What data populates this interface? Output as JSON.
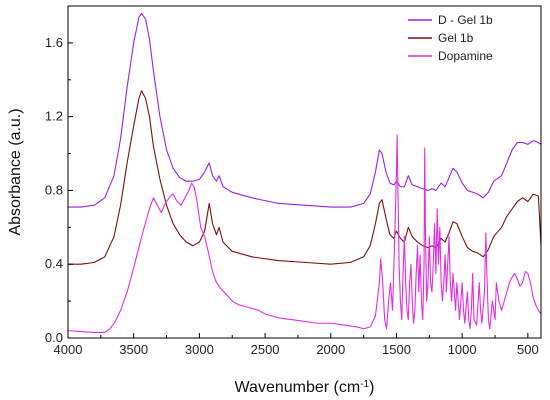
{
  "chart_data": {
    "type": "line",
    "title": "",
    "xlabel_main": "Wavenumber (cm",
    "xlabel_sup": "-1",
    "xlabel_end": ")",
    "ylabel": "Absorbance (a.u.)",
    "xlim": [
      4000,
      400
    ],
    "ylim": [
      0,
      1.8
    ],
    "x_reversed": true,
    "grid": false,
    "legend_position": "top-right",
    "x_ticks": [
      4000,
      3500,
      3000,
      2500,
      2000,
      1500,
      1000,
      500
    ],
    "x_tick_labels": [
      "4000",
      "3500",
      "3000",
      "2500",
      "2000",
      "1500",
      "1000",
      "500"
    ],
    "y_ticks": [
      0.0,
      0.4,
      0.8,
      1.2,
      1.6
    ],
    "y_tick_labels": [
      "0.0",
      "0.4",
      "0.8",
      "1.2",
      "1.6"
    ],
    "series": [
      {
        "name": "D - Gel 1b",
        "color": "#9b1fe8",
        "points": [
          [
            4000,
            0.71
          ],
          [
            3900,
            0.71
          ],
          [
            3800,
            0.72
          ],
          [
            3720,
            0.76
          ],
          [
            3650,
            0.88
          ],
          [
            3600,
            1.08
          ],
          [
            3550,
            1.36
          ],
          [
            3500,
            1.6
          ],
          [
            3460,
            1.74
          ],
          [
            3440,
            1.76
          ],
          [
            3410,
            1.73
          ],
          [
            3380,
            1.62
          ],
          [
            3350,
            1.45
          ],
          [
            3300,
            1.2
          ],
          [
            3250,
            1.02
          ],
          [
            3200,
            0.92
          ],
          [
            3150,
            0.87
          ],
          [
            3100,
            0.85
          ],
          [
            3050,
            0.85
          ],
          [
            3000,
            0.86
          ],
          [
            2960,
            0.9
          ],
          [
            2925,
            0.95
          ],
          [
            2900,
            0.88
          ],
          [
            2870,
            0.85
          ],
          [
            2850,
            0.88
          ],
          [
            2820,
            0.82
          ],
          [
            2750,
            0.79
          ],
          [
            2600,
            0.76
          ],
          [
            2400,
            0.73
          ],
          [
            2200,
            0.72
          ],
          [
            2000,
            0.71
          ],
          [
            1850,
            0.71
          ],
          [
            1750,
            0.73
          ],
          [
            1700,
            0.78
          ],
          [
            1660,
            0.9
          ],
          [
            1630,
            1.02
          ],
          [
            1610,
            1.0
          ],
          [
            1580,
            0.9
          ],
          [
            1550,
            0.84
          ],
          [
            1520,
            0.83
          ],
          [
            1500,
            0.85
          ],
          [
            1470,
            0.82
          ],
          [
            1440,
            0.82
          ],
          [
            1410,
            0.88
          ],
          [
            1380,
            0.83
          ],
          [
            1340,
            0.82
          ],
          [
            1300,
            0.81
          ],
          [
            1260,
            0.8
          ],
          [
            1230,
            0.81
          ],
          [
            1200,
            0.8
          ],
          [
            1160,
            0.84
          ],
          [
            1130,
            0.82
          ],
          [
            1100,
            0.87
          ],
          [
            1070,
            0.92
          ],
          [
            1040,
            0.9
          ],
          [
            1000,
            0.84
          ],
          [
            960,
            0.8
          ],
          [
            920,
            0.79
          ],
          [
            880,
            0.78
          ],
          [
            840,
            0.76
          ],
          [
            800,
            0.79
          ],
          [
            760,
            0.85
          ],
          [
            700,
            0.88
          ],
          [
            660,
            0.95
          ],
          [
            620,
            1.02
          ],
          [
            580,
            1.06
          ],
          [
            540,
            1.06
          ],
          [
            500,
            1.05
          ],
          [
            460,
            1.07
          ],
          [
            420,
            1.06
          ],
          [
            400,
            1.05
          ]
        ]
      },
      {
        "name": "Gel 1b",
        "color": "#7a1010",
        "points": [
          [
            4000,
            0.4
          ],
          [
            3900,
            0.4
          ],
          [
            3800,
            0.41
          ],
          [
            3720,
            0.44
          ],
          [
            3650,
            0.55
          ],
          [
            3600,
            0.72
          ],
          [
            3550,
            0.95
          ],
          [
            3500,
            1.15
          ],
          [
            3460,
            1.3
          ],
          [
            3440,
            1.34
          ],
          [
            3410,
            1.3
          ],
          [
            3380,
            1.2
          ],
          [
            3350,
            1.04
          ],
          [
            3300,
            0.86
          ],
          [
            3250,
            0.72
          ],
          [
            3200,
            0.62
          ],
          [
            3150,
            0.56
          ],
          [
            3100,
            0.52
          ],
          [
            3050,
            0.5
          ],
          [
            3000,
            0.52
          ],
          [
            2960,
            0.58
          ],
          [
            2925,
            0.73
          ],
          [
            2900,
            0.62
          ],
          [
            2870,
            0.56
          ],
          [
            2850,
            0.6
          ],
          [
            2820,
            0.52
          ],
          [
            2750,
            0.47
          ],
          [
            2600,
            0.44
          ],
          [
            2400,
            0.42
          ],
          [
            2200,
            0.41
          ],
          [
            2000,
            0.4
          ],
          [
            1850,
            0.41
          ],
          [
            1750,
            0.44
          ],
          [
            1700,
            0.5
          ],
          [
            1660,
            0.62
          ],
          [
            1630,
            0.73
          ],
          [
            1610,
            0.75
          ],
          [
            1580,
            0.65
          ],
          [
            1550,
            0.56
          ],
          [
            1520,
            0.54
          ],
          [
            1500,
            0.58
          ],
          [
            1470,
            0.54
          ],
          [
            1440,
            0.52
          ],
          [
            1410,
            0.6
          ],
          [
            1380,
            0.55
          ],
          [
            1340,
            0.52
          ],
          [
            1300,
            0.5
          ],
          [
            1260,
            0.49
          ],
          [
            1230,
            0.5
          ],
          [
            1200,
            0.49
          ],
          [
            1160,
            0.54
          ],
          [
            1130,
            0.52
          ],
          [
            1100,
            0.57
          ],
          [
            1070,
            0.63
          ],
          [
            1040,
            0.62
          ],
          [
            1000,
            0.55
          ],
          [
            960,
            0.49
          ],
          [
            920,
            0.47
          ],
          [
            880,
            0.46
          ],
          [
            840,
            0.44
          ],
          [
            800,
            0.48
          ],
          [
            760,
            0.55
          ],
          [
            700,
            0.6
          ],
          [
            660,
            0.66
          ],
          [
            620,
            0.7
          ],
          [
            580,
            0.74
          ],
          [
            540,
            0.76
          ],
          [
            500,
            0.74
          ],
          [
            460,
            0.78
          ],
          [
            420,
            0.77
          ],
          [
            400,
            0.5
          ]
        ]
      },
      {
        "name": "Dopamine",
        "color": "#e12fe0",
        "points": [
          [
            4000,
            0.04
          ],
          [
            3900,
            0.035
          ],
          [
            3800,
            0.03
          ],
          [
            3720,
            0.03
          ],
          [
            3680,
            0.05
          ],
          [
            3640,
            0.09
          ],
          [
            3600,
            0.15
          ],
          [
            3550,
            0.25
          ],
          [
            3500,
            0.38
          ],
          [
            3450,
            0.52
          ],
          [
            3420,
            0.6
          ],
          [
            3380,
            0.7
          ],
          [
            3350,
            0.76
          ],
          [
            3320,
            0.72
          ],
          [
            3290,
            0.68
          ],
          [
            3260,
            0.73
          ],
          [
            3220,
            0.77
          ],
          [
            3200,
            0.78
          ],
          [
            3170,
            0.74
          ],
          [
            3140,
            0.72
          ],
          [
            3110,
            0.76
          ],
          [
            3080,
            0.8
          ],
          [
            3060,
            0.84
          ],
          [
            3040,
            0.82
          ],
          [
            3020,
            0.75
          ],
          [
            2990,
            0.6
          ],
          [
            2960,
            0.55
          ],
          [
            2930,
            0.46
          ],
          [
            2900,
            0.36
          ],
          [
            2870,
            0.3
          ],
          [
            2840,
            0.27
          ],
          [
            2800,
            0.24
          ],
          [
            2750,
            0.2
          ],
          [
            2700,
            0.18
          ],
          [
            2650,
            0.17
          ],
          [
            2600,
            0.16
          ],
          [
            2550,
            0.15
          ],
          [
            2500,
            0.13
          ],
          [
            2450,
            0.12
          ],
          [
            2400,
            0.11
          ],
          [
            2300,
            0.1
          ],
          [
            2200,
            0.09
          ],
          [
            2100,
            0.08
          ],
          [
            2000,
            0.08
          ],
          [
            1900,
            0.07
          ],
          [
            1800,
            0.06
          ],
          [
            1750,
            0.05
          ],
          [
            1700,
            0.06
          ],
          [
            1660,
            0.12
          ],
          [
            1630,
            0.3
          ],
          [
            1620,
            0.43
          ],
          [
            1605,
            0.3
          ],
          [
            1590,
            0.1
          ],
          [
            1575,
            0.05
          ],
          [
            1560,
            0.2
          ],
          [
            1545,
            0.3
          ],
          [
            1530,
            0.15
          ],
          [
            1515,
            0.5
          ],
          [
            1500,
            0.9
          ],
          [
            1495,
            1.1
          ],
          [
            1490,
            0.85
          ],
          [
            1480,
            0.4
          ],
          [
            1470,
            0.2
          ],
          [
            1460,
            0.1
          ],
          [
            1450,
            0.35
          ],
          [
            1440,
            0.55
          ],
          [
            1430,
            0.3
          ],
          [
            1420,
            0.15
          ],
          [
            1410,
            0.1
          ],
          [
            1400,
            0.3
          ],
          [
            1390,
            0.4
          ],
          [
            1380,
            0.2
          ],
          [
            1370,
            0.08
          ],
          [
            1360,
            0.15
          ],
          [
            1350,
            0.35
          ],
          [
            1340,
            0.5
          ],
          [
            1330,
            0.25
          ],
          [
            1320,
            0.45
          ],
          [
            1310,
            0.2
          ],
          [
            1300,
            0.1
          ],
          [
            1290,
            0.4
          ],
          [
            1285,
            1.03
          ],
          [
            1280,
            0.6
          ],
          [
            1270,
            0.2
          ],
          [
            1260,
            0.3
          ],
          [
            1250,
            0.55
          ],
          [
            1240,
            0.3
          ],
          [
            1230,
            0.25
          ],
          [
            1220,
            0.4
          ],
          [
            1210,
            0.62
          ],
          [
            1200,
            0.35
          ],
          [
            1190,
            0.7
          ],
          [
            1180,
            0.4
          ],
          [
            1170,
            0.6
          ],
          [
            1160,
            0.3
          ],
          [
            1150,
            0.2
          ],
          [
            1140,
            0.3
          ],
          [
            1130,
            0.45
          ],
          [
            1120,
            0.25
          ],
          [
            1110,
            0.4
          ],
          [
            1100,
            0.55
          ],
          [
            1090,
            0.3
          ],
          [
            1080,
            0.2
          ],
          [
            1070,
            0.35
          ],
          [
            1060,
            0.25
          ],
          [
            1050,
            0.15
          ],
          [
            1040,
            0.3
          ],
          [
            1030,
            0.2
          ],
          [
            1020,
            0.1
          ],
          [
            1000,
            0.3
          ],
          [
            990,
            0.15
          ],
          [
            980,
            0.08
          ],
          [
            960,
            0.25
          ],
          [
            950,
            0.1
          ],
          [
            940,
            0.05
          ],
          [
            930,
            0.15
          ],
          [
            920,
            0.35
          ],
          [
            910,
            0.1
          ],
          [
            890,
            0.07
          ],
          [
            870,
            0.3
          ],
          [
            860,
            0.15
          ],
          [
            850,
            0.08
          ],
          [
            830,
            0.25
          ],
          [
            820,
            0.57
          ],
          [
            810,
            0.3
          ],
          [
            800,
            0.1
          ],
          [
            790,
            0.05
          ],
          [
            770,
            0.2
          ],
          [
            750,
            0.1
          ],
          [
            740,
            0.3
          ],
          [
            720,
            0.2
          ],
          [
            700,
            0.15
          ],
          [
            680,
            0.2
          ],
          [
            660,
            0.25
          ],
          [
            640,
            0.3
          ],
          [
            620,
            0.33
          ],
          [
            600,
            0.35
          ],
          [
            580,
            0.32
          ],
          [
            560,
            0.28
          ],
          [
            540,
            0.3
          ],
          [
            520,
            0.36
          ],
          [
            500,
            0.35
          ],
          [
            480,
            0.3
          ],
          [
            460,
            0.22
          ],
          [
            440,
            0.18
          ],
          [
            420,
            0.15
          ],
          [
            400,
            0.13
          ]
        ]
      }
    ]
  }
}
